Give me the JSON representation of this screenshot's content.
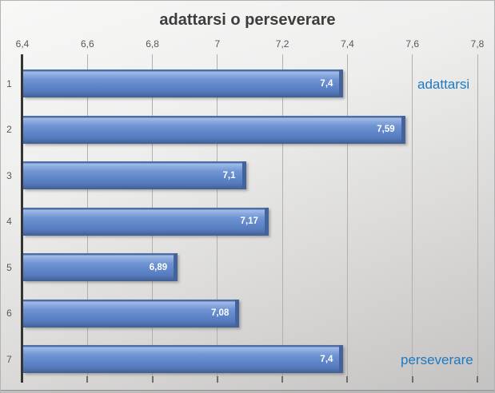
{
  "title": "adattarsi o perseverare",
  "colors": {
    "bar_fill": "#6087CA",
    "bar_highlight": "#8FADE0",
    "bar_edge": "#44639B",
    "annotation_text": "#1E79C0",
    "title_text": "#3D3D3D",
    "axis_text": "#595959",
    "gridline": "#B2B1B0",
    "axis_line": "#353535",
    "background_top": "#F8F8F7",
    "background_bottom": "#C3C2C1",
    "data_label_text": "#FFFFFF"
  },
  "chart_data": {
    "type": "bar",
    "orientation": "horizontal",
    "title": "adattarsi o perseverare",
    "categories": [
      "1",
      "2",
      "3",
      "4",
      "5",
      "6",
      "7"
    ],
    "values": [
      7.4,
      7.59,
      7.1,
      7.17,
      6.89,
      7.08,
      7.4
    ],
    "data_labels": [
      "7,4",
      "7,59",
      "7,1",
      "7,17",
      "6,89",
      "7,08",
      "7,4"
    ],
    "xlim": [
      6.4,
      7.8
    ],
    "x_ticks": [
      6.4,
      6.6,
      6.8,
      7.0,
      7.2,
      7.4,
      7.6,
      7.8
    ],
    "x_tick_labels": [
      "6,4",
      "6,6",
      "6,8",
      "7",
      "7,2",
      "7,4",
      "7,6",
      "7,8"
    ],
    "x_axis_position": "top",
    "grid": true,
    "legend": false,
    "annotations": [
      {
        "text": "adattarsi",
        "anchor_category": "1"
      },
      {
        "text": "perseverare",
        "anchor_category": "7"
      }
    ]
  }
}
